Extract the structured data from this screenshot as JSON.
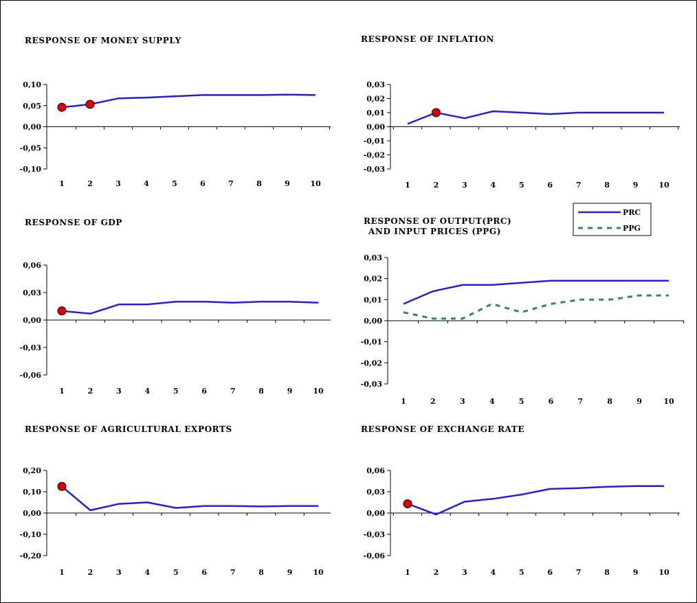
{
  "palette": {
    "line": "#1f1fdd",
    "dashed": "#2e8b57",
    "marker_fill": "#e00000",
    "marker_stroke": "#000000",
    "axis": "#000000"
  },
  "legend": {
    "entries": [
      {
        "label": "PRC",
        "style": "solid",
        "color": "#1f1fdd"
      },
      {
        "label": "PPG",
        "style": "dashed",
        "color": "#2e8b57"
      }
    ]
  },
  "chart_data": [
    {
      "type": "line",
      "title": [
        "RESPONSE OF MONEY SUPPLY"
      ],
      "categories": [
        "1",
        "2",
        "3",
        "4",
        "5",
        "6",
        "7",
        "8",
        "9",
        "10"
      ],
      "ylim": [
        -0.1,
        0.1
      ],
      "yticks": [
        "0,10",
        "0,05",
        "0,00",
        "-0,05",
        "-0,10"
      ],
      "series": [
        {
          "color": "#1f1fdd",
          "dash": false,
          "values": [
            0.046,
            0.053,
            0.067,
            0.069,
            0.072,
            0.075,
            0.075,
            0.075,
            0.076,
            0.075
          ],
          "markers": [
            0,
            1
          ]
        }
      ]
    },
    {
      "type": "line",
      "title": [
        "RESPONSE OF INFLATION"
      ],
      "categories": [
        "1",
        "2",
        "3",
        "4",
        "5",
        "6",
        "7",
        "8",
        "9",
        "10"
      ],
      "ylim": [
        -0.03,
        0.03
      ],
      "yticks": [
        "0,03",
        "0,02",
        "0,01",
        "0,00",
        "-0,01",
        "-0,02",
        "-0,03"
      ],
      "series": [
        {
          "color": "#1f1fdd",
          "dash": false,
          "values": [
            0.002,
            0.01,
            0.006,
            0.011,
            0.01,
            0.009,
            0.01,
            0.01,
            0.01,
            0.01
          ],
          "markers": [
            1
          ]
        }
      ]
    },
    {
      "type": "line",
      "title": [
        "RESPONSE OF GDP"
      ],
      "categories": [
        "1",
        "2",
        "3",
        "4",
        "5",
        "6",
        "7",
        "8",
        "9",
        "10"
      ],
      "ylim": [
        -0.06,
        0.06
      ],
      "yticks": [
        "0,06",
        "0,03",
        "0,00",
        "-0,03",
        "-0,06"
      ],
      "series": [
        {
          "color": "#1f1fdd",
          "dash": false,
          "values": [
            0.01,
            0.007,
            0.017,
            0.017,
            0.02,
            0.02,
            0.019,
            0.02,
            0.02,
            0.019
          ],
          "markers": [
            0
          ]
        }
      ]
    },
    {
      "type": "line",
      "title": [
        "RESPONSE OF OUTPUT(PRC)",
        "AND INPUT PRICES (PPG)"
      ],
      "categories": [
        "1",
        "2",
        "3",
        "4",
        "5",
        "6",
        "7",
        "8",
        "9",
        "10"
      ],
      "ylim": [
        -0.03,
        0.03
      ],
      "yticks": [
        "0,03",
        "0,02",
        "0,01",
        "0,00",
        "-0,01",
        "-0,02",
        "-0,03"
      ],
      "series": [
        {
          "name": "PRC",
          "color": "#1f1fdd",
          "dash": false,
          "values": [
            0.008,
            0.014,
            0.017,
            0.017,
            0.018,
            0.019,
            0.019,
            0.019,
            0.019,
            0.019
          ],
          "markers": []
        },
        {
          "name": "PPG",
          "color": "#2e8b57",
          "dash": true,
          "values": [
            0.004,
            0.001,
            0.001,
            0.008,
            0.004,
            0.008,
            0.01,
            0.01,
            0.012,
            0.012
          ],
          "markers": []
        }
      ]
    },
    {
      "type": "line",
      "title": [
        "RESPONSE OF AGRICULTURAL EXPORTS"
      ],
      "categories": [
        "1",
        "2",
        "3",
        "4",
        "5",
        "6",
        "7",
        "8",
        "9",
        "10"
      ],
      "ylim": [
        -0.2,
        0.2
      ],
      "yticks": [
        "0,20",
        "0,10",
        "0,00",
        "-0,10",
        "-0,20"
      ],
      "series": [
        {
          "color": "#1f1fdd",
          "dash": false,
          "values": [
            0.125,
            0.013,
            0.043,
            0.05,
            0.024,
            0.033,
            0.033,
            0.031,
            0.033,
            0.033
          ],
          "markers": [
            0
          ]
        }
      ]
    },
    {
      "type": "line",
      "title": [
        "RESPONSE OF EXCHANGE RATE"
      ],
      "categories": [
        "1",
        "2",
        "3",
        "4",
        "5",
        "6",
        "7",
        "8",
        "9",
        "10"
      ],
      "ylim": [
        -0.06,
        0.06
      ],
      "yticks": [
        "0,06",
        "0,03",
        "0,00",
        "-0,03",
        "-0,06"
      ],
      "series": [
        {
          "color": "#1f1fdd",
          "dash": false,
          "values": [
            0.013,
            -0.002,
            0.016,
            0.02,
            0.026,
            0.034,
            0.035,
            0.037,
            0.038,
            0.038
          ],
          "markers": [
            0
          ]
        }
      ]
    }
  ]
}
